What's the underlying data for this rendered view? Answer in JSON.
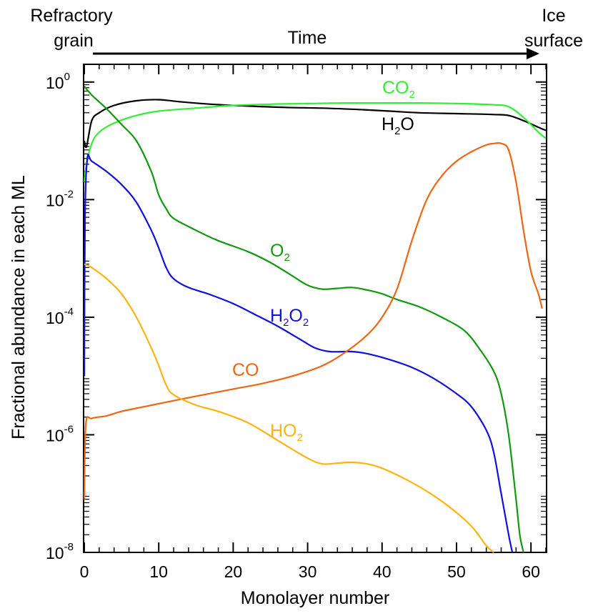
{
  "chart_data": {
    "type": "line",
    "y_scale": "log",
    "xlabel": "Monolayer number",
    "ylabel": "Fractional abundance in each ML",
    "xlim": [
      0,
      62
    ],
    "ylim": [
      1e-08,
      2
    ],
    "x_ticks": [
      0,
      10,
      20,
      30,
      40,
      50,
      60
    ],
    "x_tick_labels": [
      "0",
      "10",
      "20",
      "30",
      "40",
      "50",
      "60"
    ],
    "y_ticks": [
      {
        "value": 1,
        "base": "10",
        "exp": "0"
      },
      {
        "value": 0.01,
        "base": "10",
        "exp": "-2"
      },
      {
        "value": 0.0001,
        "base": "10",
        "exp": "-4"
      },
      {
        "value": 1e-06,
        "base": "10",
        "exp": "-6"
      },
      {
        "value": 1e-08,
        "base": "10",
        "exp": "-8"
      }
    ],
    "top_annotation": {
      "left_line1": "Refractory",
      "left_line2": "grain",
      "middle": "Time",
      "right_line1": "Ice",
      "right_line2": "surface"
    },
    "series": [
      {
        "name": "H2O",
        "label_main": "H",
        "label_sub": "2",
        "label_tail": "O",
        "color": "#000000",
        "points": [
          [
            0,
            0.1
          ],
          [
            0.3,
            0.08
          ],
          [
            1,
            0.22
          ],
          [
            2,
            0.3
          ],
          [
            4,
            0.4
          ],
          [
            7,
            0.48
          ],
          [
            10,
            0.5
          ],
          [
            13,
            0.46
          ],
          [
            17,
            0.42
          ],
          [
            22,
            0.39
          ],
          [
            27,
            0.37
          ],
          [
            32,
            0.36
          ],
          [
            37,
            0.34
          ],
          [
            41,
            0.32
          ],
          [
            45,
            0.3
          ],
          [
            50,
            0.29
          ],
          [
            55,
            0.28
          ],
          [
            57,
            0.27
          ],
          [
            59,
            0.22
          ],
          [
            61,
            0.17
          ],
          [
            62,
            0.15
          ]
        ]
      },
      {
        "name": "CO2",
        "label_main": "CO",
        "label_sub": "2",
        "label_tail": "",
        "color": "#33ee33",
        "points": [
          [
            0,
            0.02
          ],
          [
            0.3,
            0.04
          ],
          [
            1,
            0.09
          ],
          [
            2,
            0.14
          ],
          [
            4,
            0.2
          ],
          [
            7,
            0.27
          ],
          [
            10,
            0.32
          ],
          [
            15,
            0.36
          ],
          [
            20,
            0.4
          ],
          [
            25,
            0.42
          ],
          [
            30,
            0.43
          ],
          [
            35,
            0.44
          ],
          [
            40,
            0.44
          ],
          [
            45,
            0.44
          ],
          [
            50,
            0.43
          ],
          [
            55,
            0.41
          ],
          [
            57,
            0.38
          ],
          [
            59,
            0.25
          ],
          [
            61,
            0.14
          ],
          [
            62,
            0.11
          ]
        ]
      },
      {
        "name": "O2",
        "label_main": "O",
        "label_sub": "2",
        "label_tail": "",
        "color": "#119911",
        "points": [
          [
            0,
            0.85
          ],
          [
            1,
            0.6
          ],
          [
            3,
            0.35
          ],
          [
            5,
            0.19
          ],
          [
            7,
            0.1
          ],
          [
            9,
            0.03
          ],
          [
            10,
            0.012
          ],
          [
            11,
            0.007
          ],
          [
            12,
            0.0048
          ],
          [
            15,
            0.003
          ],
          [
            18,
            0.002
          ],
          [
            22,
            0.0013
          ],
          [
            25,
            0.00085
          ],
          [
            28,
            0.0005
          ],
          [
            30,
            0.00035
          ],
          [
            32,
            0.0003
          ],
          [
            34,
            0.00031
          ],
          [
            36,
            0.00032
          ],
          [
            38,
            0.00029
          ],
          [
            40,
            0.00025
          ],
          [
            42,
            0.0002
          ],
          [
            45,
            0.00015
          ],
          [
            48,
            0.0001
          ],
          [
            51,
            6e-05
          ],
          [
            53,
            3e-05
          ],
          [
            55,
            1.2e-05
          ],
          [
            56,
            5e-06
          ],
          [
            57,
            1e-06
          ],
          [
            58,
            8e-08
          ],
          [
            58.5,
            2e-08
          ],
          [
            59,
            1e-08
          ]
        ]
      },
      {
        "name": "H2O2",
        "label_main": "H",
        "label_sub": "2",
        "label_tail": "O",
        "label_sub2": "2",
        "color": "#1111dd",
        "points": [
          [
            0,
            1e-05
          ],
          [
            0.1,
            0.005
          ],
          [
            0.4,
            0.05
          ],
          [
            1,
            0.045
          ],
          [
            3,
            0.03
          ],
          [
            5,
            0.018
          ],
          [
            7,
            0.009
          ],
          [
            9,
            0.003
          ],
          [
            10,
            0.0015
          ],
          [
            11,
            0.0007
          ],
          [
            12,
            0.00045
          ],
          [
            14,
            0.00032
          ],
          [
            17,
            0.00024
          ],
          [
            20,
            0.00017
          ],
          [
            23,
            0.00011
          ],
          [
            26,
            7e-05
          ],
          [
            29,
            4.2e-05
          ],
          [
            31,
            3e-05
          ],
          [
            33,
            2.6e-05
          ],
          [
            36,
            2.6e-05
          ],
          [
            38,
            2.4e-05
          ],
          [
            41,
            1.9e-05
          ],
          [
            44,
            1.4e-05
          ],
          [
            47,
            9e-06
          ],
          [
            50,
            5e-06
          ],
          [
            52,
            3e-06
          ],
          [
            54,
            1.2e-06
          ],
          [
            55,
            5e-07
          ],
          [
            56,
            1e-07
          ],
          [
            57,
            2e-08
          ],
          [
            57.5,
            1e-08
          ]
        ]
      },
      {
        "name": "CO",
        "label_main": "CO",
        "label_sub": "",
        "label_tail": "",
        "color": "#ee6611",
        "points": [
          [
            0,
            8e-08
          ],
          [
            0.2,
            1.5e-06
          ],
          [
            1,
            1.9e-06
          ],
          [
            3,
            2.1e-06
          ],
          [
            5,
            2.5e-06
          ],
          [
            8,
            3e-06
          ],
          [
            12,
            3.8e-06
          ],
          [
            16,
            4.8e-06
          ],
          [
            20,
            6e-06
          ],
          [
            24,
            7.5e-06
          ],
          [
            28,
            1e-05
          ],
          [
            32,
            1.5e-05
          ],
          [
            35,
            2.5e-05
          ],
          [
            38,
            5e-05
          ],
          [
            40,
            0.0001
          ],
          [
            42,
            0.0003
          ],
          [
            44,
            0.002
          ],
          [
            46,
            0.01
          ],
          [
            48,
            0.025
          ],
          [
            50,
            0.045
          ],
          [
            52,
            0.065
          ],
          [
            54,
            0.085
          ],
          [
            55,
            0.09
          ],
          [
            56,
            0.09
          ],
          [
            57,
            0.07
          ],
          [
            58,
            0.02
          ],
          [
            59,
            0.003
          ],
          [
            60,
            0.0006
          ],
          [
            61,
            0.00025
          ],
          [
            61.5,
            0.00014
          ]
        ]
      },
      {
        "name": "HO2",
        "label_main": "HO",
        "label_sub": "2",
        "label_tail": "",
        "color": "#ffb311",
        "points": [
          [
            0,
            0.0008
          ],
          [
            1,
            0.0007
          ],
          [
            3,
            0.00045
          ],
          [
            5,
            0.00025
          ],
          [
            7,
            0.0001
          ],
          [
            9,
            3e-05
          ],
          [
            10,
            1.5e-05
          ],
          [
            11,
            7e-06
          ],
          [
            12,
            4.8e-06
          ],
          [
            15,
            3.2e-06
          ],
          [
            18,
            2.5e-06
          ],
          [
            22,
            1.6e-06
          ],
          [
            26,
            8e-07
          ],
          [
            30,
            4e-07
          ],
          [
            32,
            3.2e-07
          ],
          [
            34,
            3.3e-07
          ],
          [
            36,
            3.4e-07
          ],
          [
            38,
            3.2e-07
          ],
          [
            40,
            2.7e-07
          ],
          [
            43,
            1.8e-07
          ],
          [
            46,
            1.1e-07
          ],
          [
            49,
            6e-08
          ],
          [
            52,
            2.8e-08
          ],
          [
            54,
            1.3e-08
          ],
          [
            55,
            1e-08
          ]
        ]
      }
    ]
  }
}
